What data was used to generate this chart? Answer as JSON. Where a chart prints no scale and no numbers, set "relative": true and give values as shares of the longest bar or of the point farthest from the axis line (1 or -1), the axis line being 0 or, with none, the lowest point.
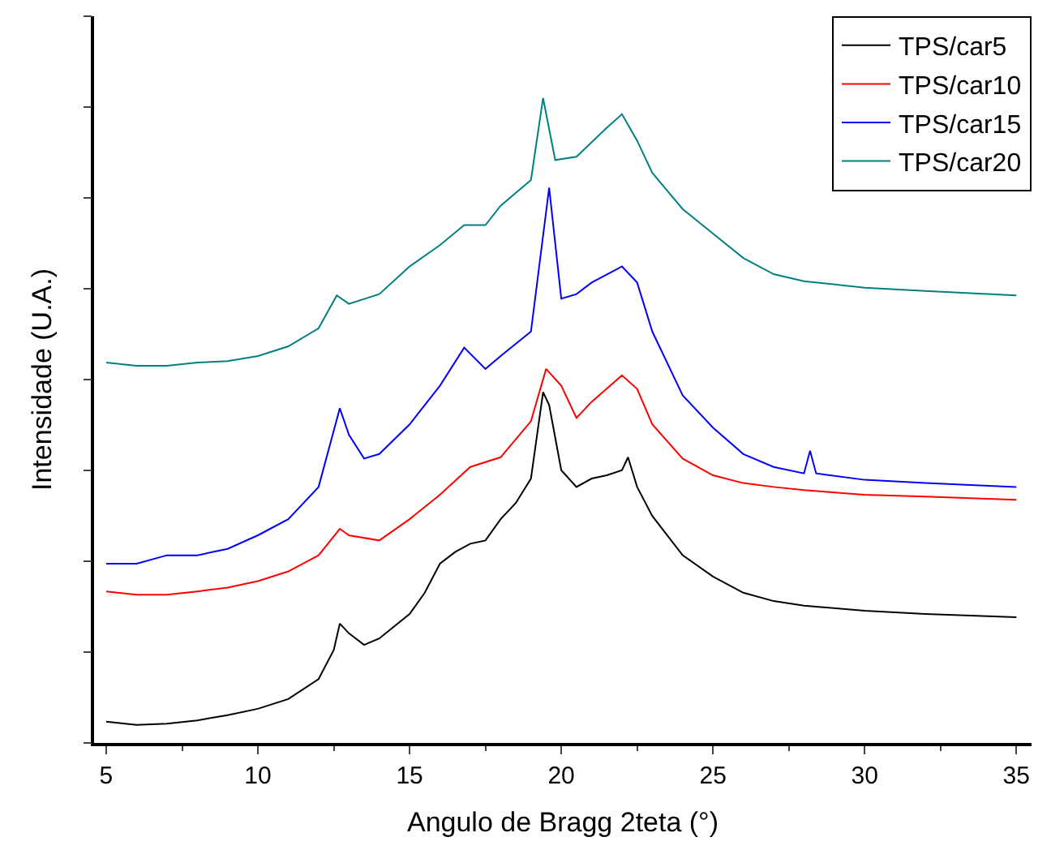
{
  "chart_data": {
    "type": "line",
    "relative": true,
    "xlabel": "Angulo de Bragg 2teta (°)",
    "ylabel": "Intensidade (U.A.)",
    "xlim": [
      4.6,
      35.5
    ],
    "xticks": [
      5,
      10,
      15,
      20,
      25,
      30,
      35
    ],
    "legend": "top right",
    "marker": "none",
    "line_style": "solid",
    "series": [
      {
        "name": "TPS/car5",
        "color": "#000000",
        "x": [
          5,
          6,
          7,
          8,
          9,
          10,
          11,
          12,
          12.5,
          12.7,
          13,
          13.5,
          14,
          15,
          15.5,
          16,
          16.5,
          17,
          17.5,
          18,
          18.5,
          19,
          19.4,
          19.6,
          20,
          20.5,
          21,
          21.5,
          22,
          22.2,
          22.5,
          23,
          24,
          25,
          26,
          27,
          28,
          30,
          32,
          35
        ],
        "values": [
          0.033,
          0.028,
          0.03,
          0.035,
          0.043,
          0.053,
          0.068,
          0.099,
          0.144,
          0.185,
          0.17,
          0.152,
          0.162,
          0.2,
          0.233,
          0.278,
          0.296,
          0.309,
          0.314,
          0.347,
          0.372,
          0.41,
          0.544,
          0.524,
          0.423,
          0.397,
          0.41,
          0.415,
          0.423,
          0.443,
          0.397,
          0.352,
          0.291,
          0.258,
          0.233,
          0.22,
          0.213,
          0.205,
          0.2,
          0.195
        ]
      },
      {
        "name": "TPS/car10",
        "color": "#ff0000",
        "x": [
          5,
          6,
          7,
          8,
          9,
          10,
          11,
          12,
          12.7,
          13,
          14,
          15,
          16,
          17,
          18,
          19,
          19.5,
          20,
          20.5,
          21,
          22,
          22.5,
          23,
          24,
          25,
          26,
          27,
          28,
          30,
          32,
          35
        ],
        "values": [
          0.235,
          0.23,
          0.23,
          0.235,
          0.241,
          0.251,
          0.266,
          0.291,
          0.332,
          0.322,
          0.314,
          0.347,
          0.385,
          0.428,
          0.443,
          0.499,
          0.58,
          0.554,
          0.504,
          0.529,
          0.57,
          0.549,
          0.494,
          0.441,
          0.415,
          0.403,
          0.397,
          0.392,
          0.385,
          0.382,
          0.377
        ]
      },
      {
        "name": "TPS/car15",
        "color": "#0000ff",
        "x": [
          5,
          6,
          7,
          8,
          9,
          10,
          11,
          12,
          12.7,
          13,
          13.5,
          14,
          15,
          16,
          16.8,
          17.5,
          18,
          19,
          19.6,
          20,
          20.5,
          21,
          22,
          22.5,
          23,
          24,
          25,
          26,
          27,
          28,
          28.2,
          28.4,
          30,
          32,
          35
        ],
        "values": [
          0.278,
          0.278,
          0.291,
          0.291,
          0.301,
          0.322,
          0.347,
          0.397,
          0.519,
          0.478,
          0.441,
          0.448,
          0.494,
          0.554,
          0.613,
          0.58,
          0.6,
          0.638,
          0.861,
          0.689,
          0.696,
          0.714,
          0.739,
          0.714,
          0.638,
          0.539,
          0.489,
          0.448,
          0.428,
          0.418,
          0.453,
          0.418,
          0.408,
          0.403,
          0.397
        ]
      },
      {
        "name": "TPS/car20",
        "color": "#008080",
        "x": [
          5,
          6,
          7,
          8,
          9,
          10,
          11,
          12,
          12.6,
          13,
          14,
          15,
          16,
          16.8,
          17.5,
          18,
          19,
          19.4,
          19.8,
          20.5,
          21.5,
          22,
          22.5,
          23,
          24,
          25,
          26,
          27,
          28,
          30,
          32,
          35
        ],
        "values": [
          0.59,
          0.585,
          0.585,
          0.59,
          0.592,
          0.6,
          0.615,
          0.643,
          0.694,
          0.681,
          0.696,
          0.739,
          0.772,
          0.803,
          0.803,
          0.833,
          0.873,
          1,
          0.904,
          0.909,
          0.954,
          0.975,
          0.934,
          0.884,
          0.828,
          0.79,
          0.752,
          0.727,
          0.716,
          0.706,
          0.701,
          0.694
        ]
      }
    ]
  }
}
